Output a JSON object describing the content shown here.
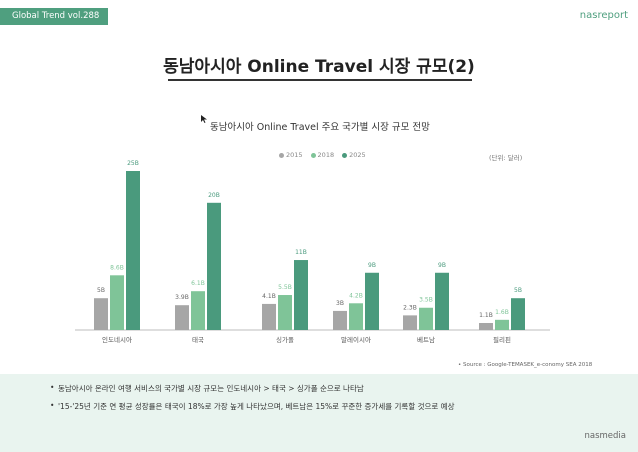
{
  "header": {
    "badge": "Global Trend vol.288",
    "brand": "nasreport",
    "title": "동남아시아 Online Travel 시장 규모(2)"
  },
  "chart_data": {
    "type": "bar",
    "title": "동남아시아 Online Travel 주요 국가별 시장 규모 전망",
    "unit_label": "(단위: 달러)",
    "categories": [
      "인도네시아",
      "태국",
      "싱가폴",
      "말레이시아",
      "베트남",
      "필리핀"
    ],
    "series": [
      {
        "name": "2015",
        "color": "#a6a6a6",
        "values": [
          5,
          3.9,
          4.1,
          3,
          2.3,
          1.1
        ],
        "labels": [
          "5B",
          "3.9B",
          "4.1B",
          "3B",
          "2.3B",
          "1.1B"
        ]
      },
      {
        "name": "2018",
        "color": "#7fc498",
        "values": [
          8.6,
          6.1,
          5.5,
          4.2,
          3.5,
          1.6
        ],
        "labels": [
          "8.6B",
          "6.1B",
          "5.5B",
          "4.2B",
          "3.5B",
          "1.6B"
        ]
      },
      {
        "name": "2025",
        "color": "#4a9a7d",
        "values": [
          25,
          20,
          11,
          9,
          9,
          5
        ],
        "labels": [
          "25B",
          "20B",
          "11B",
          "9B",
          "9B",
          "5B"
        ]
      }
    ],
    "ylim": [
      0,
      25
    ],
    "grid": false,
    "legend_position": "top-center"
  },
  "source": "• Source : Google-TEMASEK_e-conomy SEA 2018",
  "notes": {
    "bullet": "•",
    "note1": "동남아시아 온라인 여행 서비스의 국가별 시장 규모는 인도네시아 > 태국 > 싱가폴 순으로 나타남",
    "note2": "'15-'25년 기준 연 평균 성장률은 태국이 18%로 가장 높게 나타났으며, 베트남은 15%로 꾸준한 증가세를 기록할 것으로 예상"
  },
  "footer": {
    "brand": "nasmedia"
  }
}
